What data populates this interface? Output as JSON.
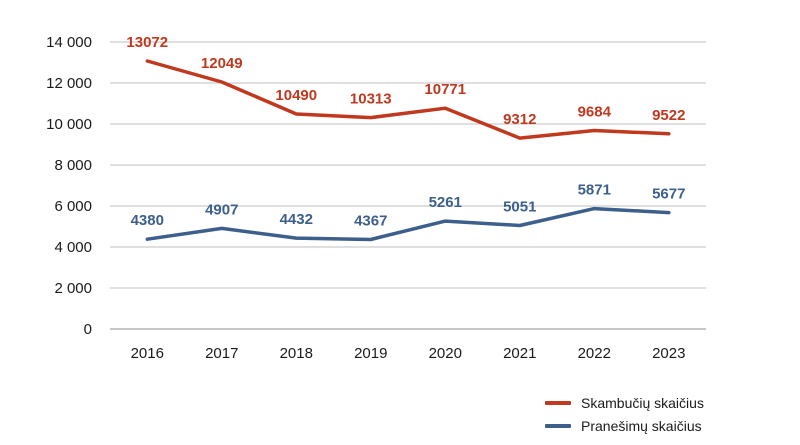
{
  "chart_data": {
    "type": "line",
    "categories": [
      "2016",
      "2017",
      "2018",
      "2019",
      "2020",
      "2021",
      "2022",
      "2023"
    ],
    "ylim": [
      0,
      14000
    ],
    "yticks": [
      0,
      2000,
      4000,
      6000,
      8000,
      10000,
      12000,
      14000
    ],
    "ytick_labels": [
      "0",
      "2 000",
      "4 000",
      "6 000",
      "8 000",
      "10 000",
      "12 000",
      "14 000"
    ],
    "grid": true,
    "legend_position": "bottom-right",
    "series": [
      {
        "name": "Skambučių skaičius",
        "color": "#c0391f",
        "values": [
          13072,
          12049,
          10490,
          10313,
          10771,
          9312,
          9684,
          9522
        ],
        "labels": [
          "13072",
          "12049",
          "10490",
          "10313",
          "10771",
          "9312",
          "9684",
          "9522"
        ]
      },
      {
        "name": "Pranešimų skaičius",
        "color": "#3d5f8c",
        "values": [
          4380,
          4907,
          4432,
          4367,
          5261,
          5051,
          5871,
          5677
        ],
        "labels": [
          "4380",
          "4907",
          "4432",
          "4367",
          "5261",
          "5051",
          "5871",
          "5677"
        ]
      }
    ]
  }
}
